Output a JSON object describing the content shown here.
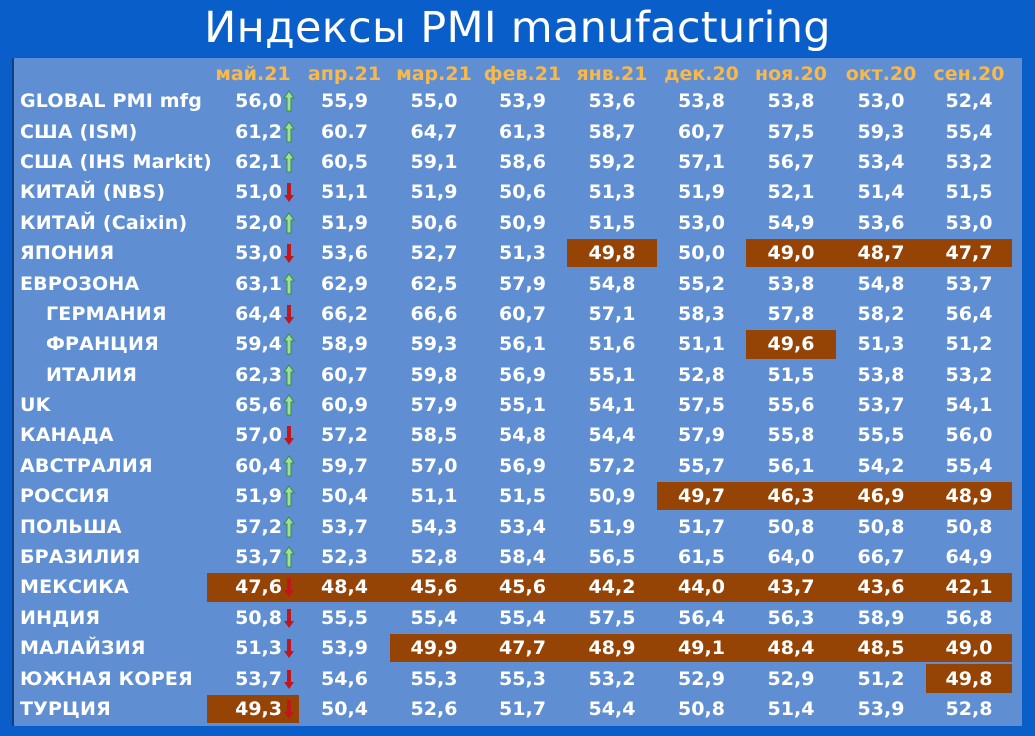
{
  "title": "Индексы PMI manufacturing",
  "chart_data": {
    "type": "table",
    "columns": [
      "май.21",
      "апр.21",
      "мар.21",
      "фев.21",
      "янв.21",
      "дек.20",
      "ноя.20",
      "окт.20",
      "сен.20"
    ],
    "rows": [
      {
        "label": "GLOBAL PMI mfg",
        "indent": false,
        "values": [
          "56,0",
          "55,9",
          "55,0",
          "53,9",
          "53,6",
          "53,8",
          "53,8",
          "53,0",
          "52,4"
        ],
        "trend": "up",
        "below50": [
          false,
          false,
          false,
          false,
          false,
          false,
          false,
          false,
          false
        ]
      },
      {
        "label": "США (ISM)",
        "indent": false,
        "values": [
          "61,2",
          "60.7",
          "64,7",
          "61,3",
          "58,7",
          "60,7",
          "57,5",
          "59,3",
          "55,4"
        ],
        "trend": "up",
        "below50": [
          false,
          false,
          false,
          false,
          false,
          false,
          false,
          false,
          false
        ]
      },
      {
        "label": "США (IHS Markit)",
        "indent": false,
        "values": [
          "62,1",
          "60,5",
          "59,1",
          "58,6",
          "59,2",
          "57,1",
          "56,7",
          "53,4",
          "53,2"
        ],
        "trend": "up",
        "below50": [
          false,
          false,
          false,
          false,
          false,
          false,
          false,
          false,
          false
        ]
      },
      {
        "label": "КИТАЙ (NBS)",
        "indent": false,
        "values": [
          "51,0",
          "51,1",
          "51,9",
          "50,6",
          "51,3",
          "51,9",
          "52,1",
          "51,4",
          "51,5"
        ],
        "trend": "down",
        "below50": [
          false,
          false,
          false,
          false,
          false,
          false,
          false,
          false,
          false
        ]
      },
      {
        "label": "КИТАЙ (Caixin)",
        "indent": false,
        "values": [
          "52,0",
          "51,9",
          "50,6",
          "50,9",
          "51,5",
          "53,0",
          "54,9",
          "53,6",
          "53,0"
        ],
        "trend": "up",
        "below50": [
          false,
          false,
          false,
          false,
          false,
          false,
          false,
          false,
          false
        ]
      },
      {
        "label": "ЯПОНИЯ",
        "indent": false,
        "values": [
          "53,0",
          "53,6",
          "52,7",
          "51,3",
          "49,8",
          "50,0",
          "49,0",
          "48,7",
          "47,7"
        ],
        "trend": "down",
        "below50": [
          false,
          false,
          false,
          false,
          true,
          false,
          true,
          true,
          true
        ]
      },
      {
        "label": "ЕВРОЗОНА",
        "indent": false,
        "values": [
          "63,1",
          "62,9",
          "62,5",
          "57,9",
          "54,8",
          "55,2",
          "53,8",
          "54,8",
          "53,7"
        ],
        "trend": "up",
        "below50": [
          false,
          false,
          false,
          false,
          false,
          false,
          false,
          false,
          false
        ]
      },
      {
        "label": "ГЕРМАНИЯ",
        "indent": true,
        "values": [
          "64,4",
          "66,2",
          "66,6",
          "60,7",
          "57,1",
          "58,3",
          "57,8",
          "58,2",
          "56,4"
        ],
        "trend": "down",
        "below50": [
          false,
          false,
          false,
          false,
          false,
          false,
          false,
          false,
          false
        ]
      },
      {
        "label": "ФРАНЦИЯ",
        "indent": true,
        "values": [
          "59,4",
          "58,9",
          "59,3",
          "56,1",
          "51,6",
          "51,1",
          "49,6",
          "51,3",
          "51,2"
        ],
        "trend": "up",
        "below50": [
          false,
          false,
          false,
          false,
          false,
          false,
          true,
          false,
          false
        ]
      },
      {
        "label": "ИТАЛИЯ",
        "indent": true,
        "values": [
          "62,3",
          "60,7",
          "59,8",
          "56,9",
          "55,1",
          "52,8",
          "51,5",
          "53,8",
          "53,2"
        ],
        "trend": "up",
        "below50": [
          false,
          false,
          false,
          false,
          false,
          false,
          false,
          false,
          false
        ]
      },
      {
        "label": "UK",
        "indent": false,
        "values": [
          "65,6",
          "60,9",
          "57,9",
          "55,1",
          "54,1",
          "57,5",
          "55,6",
          "53,7",
          "54,1"
        ],
        "trend": "up",
        "below50": [
          false,
          false,
          false,
          false,
          false,
          false,
          false,
          false,
          false
        ]
      },
      {
        "label": "КАНАДА",
        "indent": false,
        "values": [
          "57,0",
          "57,2",
          "58,5",
          "54,8",
          "54,4",
          "57,9",
          "55,8",
          "55,5",
          "56,0"
        ],
        "trend": "down",
        "below50": [
          false,
          false,
          false,
          false,
          false,
          false,
          false,
          false,
          false
        ]
      },
      {
        "label": "АВСТРАЛИЯ",
        "indent": false,
        "values": [
          "60,4",
          "59,7",
          "57,0",
          "56,9",
          "57,2",
          "55,7",
          "56,1",
          "54,2",
          "55,4"
        ],
        "trend": "up",
        "below50": [
          false,
          false,
          false,
          false,
          false,
          false,
          false,
          false,
          false
        ]
      },
      {
        "label": "РОССИЯ",
        "indent": false,
        "values": [
          "51,9",
          "50,4",
          "51,1",
          "51,5",
          "50,9",
          "49,7",
          "46,3",
          "46,9",
          "48,9"
        ],
        "trend": "up",
        "below50": [
          false,
          false,
          false,
          false,
          false,
          true,
          true,
          true,
          true
        ]
      },
      {
        "label": "ПОЛЬША",
        "indent": false,
        "values": [
          "57,2",
          "53,7",
          "54,3",
          "53,4",
          "51,9",
          "51,7",
          "50,8",
          "50,8",
          "50,8"
        ],
        "trend": "up",
        "below50": [
          false,
          false,
          false,
          false,
          false,
          false,
          false,
          false,
          false
        ]
      },
      {
        "label": "БРАЗИЛИЯ",
        "indent": false,
        "values": [
          "53,7",
          "52,3",
          "52,8",
          "58,4",
          "56,5",
          "61,5",
          "64,0",
          "66,7",
          "64,9"
        ],
        "trend": "up",
        "below50": [
          false,
          false,
          false,
          false,
          false,
          false,
          false,
          false,
          false
        ]
      },
      {
        "label": "МЕКСИКА",
        "indent": false,
        "values": [
          "47,6",
          "48,4",
          "45,6",
          "45,6",
          "44,2",
          "44,0",
          "43,7",
          "43,6",
          "42,1"
        ],
        "trend": "down",
        "below50": [
          true,
          true,
          true,
          true,
          true,
          true,
          true,
          true,
          true
        ]
      },
      {
        "label": "ИНДИЯ",
        "indent": false,
        "values": [
          "50,8",
          "55,5",
          "55,4",
          "55,4",
          "57,5",
          "56,4",
          "56,3",
          "58,9",
          "56,8"
        ],
        "trend": "down",
        "below50": [
          false,
          false,
          false,
          false,
          false,
          false,
          false,
          false,
          false
        ]
      },
      {
        "label": "МАЛАЙЗИЯ",
        "indent": false,
        "values": [
          "51,3",
          "53,9",
          "49,9",
          "47,7",
          "48,9",
          "49,1",
          "48,4",
          "48,5",
          "49,0"
        ],
        "trend": "down",
        "below50": [
          false,
          false,
          true,
          true,
          true,
          true,
          true,
          true,
          true
        ]
      },
      {
        "label": "ЮЖНАЯ КОРЕЯ",
        "indent": false,
        "values": [
          "53,7",
          "54,6",
          "55,3",
          "55,3",
          "53,2",
          "52,9",
          "52,9",
          "51,2",
          "49,8"
        ],
        "trend": "down",
        "below50": [
          false,
          false,
          false,
          false,
          false,
          false,
          false,
          false,
          true
        ]
      },
      {
        "label": "ТУРЦИЯ",
        "indent": false,
        "values": [
          "49,3",
          "50,4",
          "52,6",
          "51,7",
          "54,4",
          "50,8",
          "51,4",
          "53,9",
          "52,8"
        ],
        "trend": "down",
        "below50": [
          true,
          false,
          false,
          false,
          false,
          false,
          false,
          false,
          false
        ]
      }
    ]
  },
  "colors": {
    "background": "#0a5ec9",
    "table_background": "#5f8fd2",
    "header_text": "#f7b84c",
    "below_50_highlight": "#964405",
    "arrow_up": "#9be39b",
    "arrow_down": "#c0161c"
  },
  "icons": {
    "up": "up-arrow-icon",
    "down": "down-arrow-icon"
  }
}
